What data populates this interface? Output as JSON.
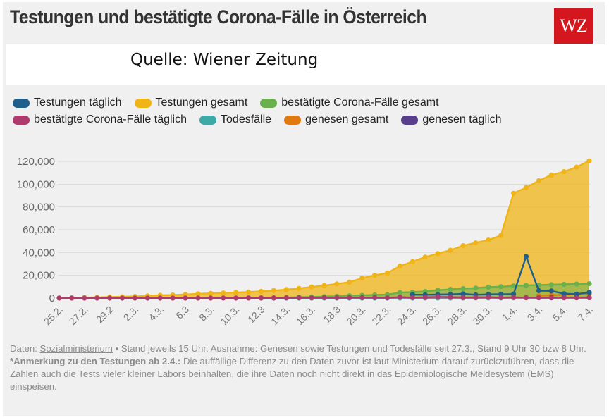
{
  "header": {
    "title": "Testungen und bestätigte Corona-Fälle in Österreich",
    "logo_text": "WZ",
    "source": "Quelle: Wiener Zeitung"
  },
  "footnote": {
    "line1_prefix": "Daten: ",
    "line1_link": "Sozialministerium",
    "line1_rest": " • Stand jeweils 15 Uhr. Ausnahme: Genesen sowie Testungen und Todesfälle seit 27.3., Stand 9 Uhr 30 bzw 8 Uhr.",
    "note_label": "*Anmerkung zu den Testungen ab 2.4.:",
    "note_text": " Die auffällige Differenz zu den Daten zuvor ist laut Ministerium darauf zurückzuführen, dass die Zahlen auch die Tests vieler kleiner Labors beinhalten, die ihre Daten noch nicht direkt in das Epidemiologische Meldesystem (EMS) einspeisen."
  },
  "chart_data": {
    "type": "line",
    "x": [
      "25.2.",
      "26.2.",
      "27.2.",
      "28.2.",
      "29.2",
      "1.3.",
      "2.3.",
      "3.3.",
      "4.3.",
      "5.3.",
      "6.3",
      "7.3.",
      "8.3.",
      "9.3.",
      "10.3.",
      "11.3.",
      "12.3",
      "13.3.",
      "14.3.",
      "15.3.",
      "16.3.",
      "17.3.",
      "18.3",
      "19.3.",
      "20.3.",
      "21.3.",
      "22.3.",
      "23.3.",
      "24.3.",
      "25.3.",
      "26.3.",
      "27.3.",
      "28.3.",
      "29.3.",
      "30.3.",
      "31.3.",
      "1.4.",
      "2.4.",
      "3.4.",
      "4.4.",
      "5.4.",
      "6.4.",
      "7.4."
    ],
    "x_tick_labels": [
      "25.2.",
      "27.2.",
      "29.2",
      "2.3.",
      "4.3.",
      "6.3",
      "8.3.",
      "10.3.",
      "12.3",
      "14.3.",
      "16.3.",
      "18.3",
      "20.3.",
      "22.3.",
      "24.3.",
      "26.3.",
      "28.3.",
      "30.3.",
      "1.4.",
      "3.4.",
      "5.4.",
      "7.4."
    ],
    "ylim": [
      0,
      125000
    ],
    "y_ticks": [
      0,
      20000,
      40000,
      60000,
      80000,
      100000,
      120000
    ],
    "y_tick_labels": [
      "0",
      "20,000",
      "40,000",
      "60,000",
      "80,000",
      "100,000",
      "120,000"
    ],
    "grid": "horizontal",
    "legend_position": "top",
    "series": [
      {
        "name": "Testungen täglich",
        "color": "#1f5f8b",
        "values": [
          null,
          null,
          null,
          null,
          null,
          null,
          null,
          null,
          null,
          null,
          null,
          null,
          null,
          null,
          null,
          null,
          null,
          null,
          null,
          null,
          null,
          null,
          null,
          null,
          null,
          null,
          null,
          null,
          3000,
          2900,
          3100,
          3300,
          3700,
          2900,
          3300,
          3400,
          3500,
          36500,
          6500,
          6300,
          3900,
          3500,
          5000
        ]
      },
      {
        "name": "Testungen gesamt",
        "color": "#f0b417",
        "values": [
          200,
          300,
          500,
          700,
          1000,
          1200,
          1500,
          2000,
          2500,
          2700,
          3200,
          3800,
          4200,
          4500,
          4900,
          5400,
          5900,
          6600,
          7500,
          8500,
          9800,
          11000,
          12500,
          14000,
          17500,
          20000,
          22000,
          28000,
          32000,
          36000,
          39000,
          42000,
          46000,
          48500,
          51000,
          55000,
          92000,
          97000,
          103000,
          108000,
          111000,
          115000,
          120500
        ]
      },
      {
        "name": "bestätigte Corona-Fälle gesamt",
        "color": "#6ab04c",
        "values": [
          2,
          2,
          3,
          5,
          9,
          10,
          10,
          18,
          24,
          29,
          41,
          55,
          79,
          104,
          131,
          182,
          246,
          302,
          504,
          800,
          959,
          1332,
          1646,
          2013,
          2388,
          2814,
          3024,
          4876,
          5282,
          5888,
          6909,
          7697,
          8271,
          8813,
          9618,
          10019,
          10711,
          11129,
          11524,
          11781,
          12051,
          12297,
          12639
        ]
      },
      {
        "name": "bestätigte Corona-Fälle täglich",
        "color": "#b03a6e",
        "values": [
          2,
          0,
          1,
          2,
          4,
          1,
          0,
          8,
          6,
          5,
          12,
          14,
          24,
          25,
          27,
          51,
          64,
          56,
          202,
          296,
          159,
          373,
          314,
          367,
          375,
          426,
          210,
          852,
          406,
          606,
          1021,
          788,
          574,
          542,
          805,
          401,
          692,
          418,
          395,
          257,
          270,
          246,
          342
        ]
      },
      {
        "name": "Todesfälle",
        "color": "#3daaa8",
        "values": [
          null,
          null,
          null,
          null,
          null,
          null,
          null,
          null,
          null,
          null,
          null,
          null,
          null,
          null,
          null,
          null,
          1,
          1,
          1,
          1,
          1,
          3,
          4,
          6,
          8,
          16,
          21,
          28,
          30,
          49,
          58,
          68,
          86,
          108,
          128,
          146,
          158,
          168,
          186,
          204,
          220,
          243,
          273
        ]
      },
      {
        "name": "genesen gesamt",
        "color": "#e07a10",
        "values": [
          null,
          null,
          null,
          null,
          null,
          null,
          null,
          null,
          null,
          null,
          null,
          null,
          null,
          null,
          null,
          null,
          null,
          null,
          null,
          null,
          null,
          null,
          null,
          null,
          null,
          null,
          null,
          null,
          null,
          null,
          null,
          null,
          null,
          null,
          null,
          null,
          null,
          null,
          2022,
          2507,
          2998,
          3463,
          4046
        ]
      },
      {
        "name": "genesen täglich",
        "color": "#5a3e8e",
        "values": [
          null,
          null,
          null,
          null,
          null,
          null,
          null,
          null,
          null,
          null,
          null,
          null,
          null,
          null,
          null,
          null,
          null,
          null,
          null,
          null,
          null,
          null,
          null,
          null,
          null,
          null,
          null,
          null,
          null,
          null,
          null,
          null,
          null,
          null,
          null,
          null,
          null,
          null,
          300,
          485,
          491,
          465,
          583
        ]
      }
    ]
  }
}
